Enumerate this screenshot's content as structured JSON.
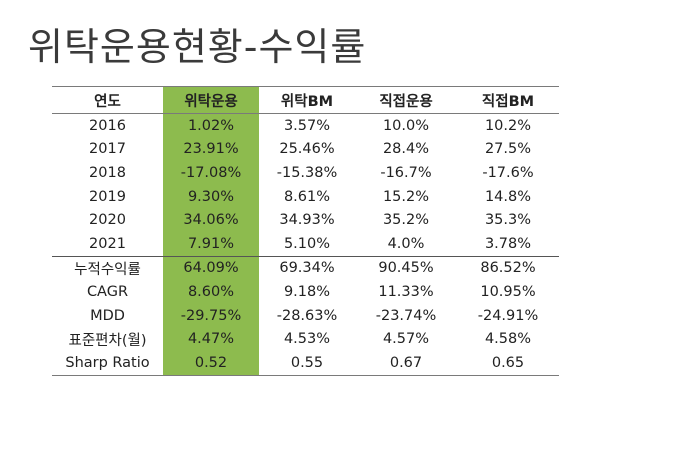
{
  "title": "위탁운용현황-수익률",
  "table": {
    "headers": [
      "연도",
      "위탁운용",
      "위탁BM",
      "직접운용",
      "직접BM"
    ],
    "highlight_color": "#8dbb4e",
    "year_rows": [
      [
        "2016",
        "1.02%",
        "3.57%",
        "10.0%",
        "10.2%"
      ],
      [
        "2017",
        "23.91%",
        "25.46%",
        "28.4%",
        "27.5%"
      ],
      [
        "2018",
        "-17.08%",
        "-15.38%",
        "-16.7%",
        "-17.6%"
      ],
      [
        "2019",
        "9.30%",
        "8.61%",
        "15.2%",
        "14.8%"
      ],
      [
        "2020",
        "34.06%",
        "34.93%",
        "35.2%",
        "35.3%"
      ],
      [
        "2021",
        "7.91%",
        "5.10%",
        "4.0%",
        "3.78%"
      ]
    ],
    "summary_rows": [
      [
        "누적수익률",
        "64.09%",
        "69.34%",
        "90.45%",
        "86.52%"
      ],
      [
        "CAGR",
        "8.60%",
        "9.18%",
        "11.33%",
        "10.95%"
      ],
      [
        "MDD",
        "-29.75%",
        "-28.63%",
        "-23.74%",
        "-24.91%"
      ],
      [
        "표준편차(월)",
        "4.47%",
        "4.53%",
        "4.57%",
        "4.58%"
      ],
      [
        "Sharp Ratio",
        "0.52",
        "0.55",
        "0.67",
        "0.65"
      ]
    ]
  }
}
